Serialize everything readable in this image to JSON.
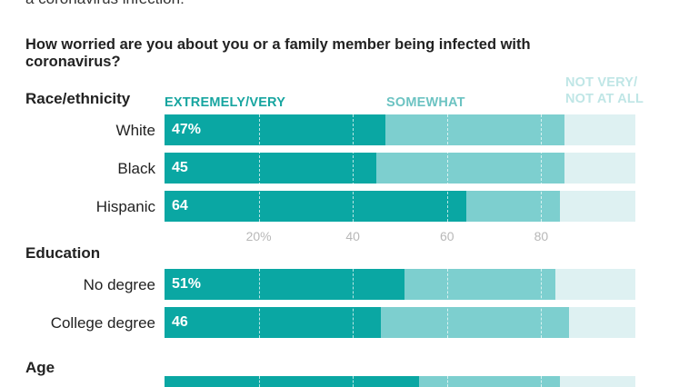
{
  "header": {
    "top_cut_text": "a coronavirus infection:",
    "question": "How worried are you about you or a family member being infected with coronavirus?"
  },
  "legend": {
    "extremely_very": "EXTREMELY/VERY",
    "somewhat": "SOMEWHAT",
    "not_very_line1": "NOT VERY/",
    "not_very_line2": "NOT AT ALL"
  },
  "colors": {
    "extremely_very": "#0aa7a3",
    "somewhat": "#7dcfcf",
    "not_very": "#def1f2",
    "legend_dark": "#17a5a0",
    "legend_mid": "#6cc3c2",
    "legend_light": "#bfe6e6"
  },
  "chart_data": {
    "type": "bar",
    "stacked": true,
    "orientation": "horizontal",
    "xlim": [
      0,
      100
    ],
    "ticks": [
      "20%",
      "40",
      "60",
      "80"
    ],
    "tick_values": [
      20,
      40,
      60,
      80
    ],
    "groups": [
      {
        "label": "Race/ethnicity",
        "rows": [
          {
            "label": "White",
            "extremely_very": 47,
            "somewhat": 38,
            "not_very": 15,
            "value_label": "47%"
          },
          {
            "label": "Black",
            "extremely_very": 45,
            "somewhat": 40,
            "not_very": 15,
            "value_label": "45"
          },
          {
            "label": "Hispanic",
            "extremely_very": 64,
            "somewhat": 20,
            "not_very": 16,
            "value_label": "64"
          }
        ]
      },
      {
        "label": "Education",
        "rows": [
          {
            "label": "No degree",
            "extremely_very": 51,
            "somewhat": 32,
            "not_very": 17,
            "value_label": "51%"
          },
          {
            "label": "College degree",
            "extremely_very": 46,
            "somewhat": 40,
            "not_very": 14,
            "value_label": "46"
          }
        ]
      },
      {
        "label": "Age",
        "rows": [
          {
            "label": "",
            "extremely_very": 54,
            "somewhat": 30,
            "not_very": 16,
            "value_label": ""
          }
        ]
      }
    ]
  }
}
